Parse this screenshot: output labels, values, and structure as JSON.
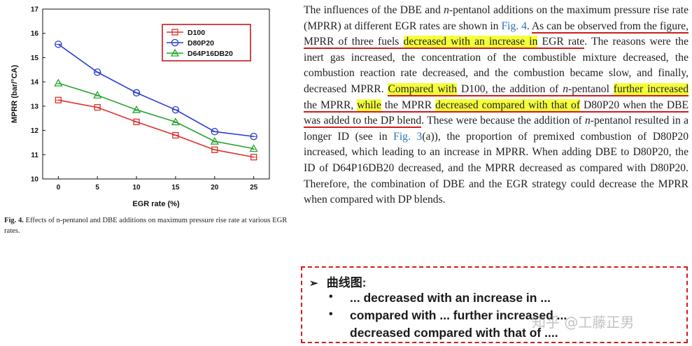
{
  "chart_data": {
    "type": "line",
    "x": [
      0,
      5,
      10,
      15,
      20,
      25
    ],
    "xlabel": "EGR rate (%)",
    "ylabel": "MPRR (bar/°CA)",
    "ylim": [
      10,
      17
    ],
    "xticks": [
      "0",
      "5",
      "10",
      "15",
      "20",
      "25"
    ],
    "yticks": [
      "10",
      "11",
      "12",
      "13",
      "14",
      "15",
      "16",
      "17"
    ],
    "legend_position": "top-right",
    "series": [
      {
        "name": "D100",
        "marker": "square",
        "color": "#e0302b",
        "values": [
          13.25,
          12.95,
          12.35,
          11.8,
          11.2,
          10.9
        ]
      },
      {
        "name": "D80P20",
        "marker": "circle",
        "color": "#2c3fcf",
        "values": [
          15.55,
          14.4,
          13.55,
          12.85,
          11.95,
          11.75
        ]
      },
      {
        "name": "D64P16DB20",
        "marker": "triangle",
        "color": "#27a532",
        "values": [
          13.95,
          13.45,
          12.85,
          12.35,
          11.55,
          11.25
        ]
      }
    ]
  },
  "caption": {
    "label": "Fig. 4.",
    "text": "Effects of n-pentanol and DBE additions on maximum pressure rise rate at various EGR rates."
  },
  "paragraph": {
    "p1": "The influences of the DBE and ",
    "p2": "n",
    "p3": "-pentanol additions on the maximum pressure rise rate (MPRR) at different EGR rates are shown in ",
    "ref1": "Fig. 4",
    "p4": ". ",
    "u1": "As can be observed from the figure, MPRR of three fuels ",
    "h1": "decreased with an increase in",
    "u2": " EGR rate",
    "p5": ". The reasons were the inert gas increased, the concentration of the combustible mixture decreased, the combustion reaction rate decreased, and the combustion became slow, and finally, decreased MPRR. ",
    "h2": "Compared with",
    "u3": " D100, the addition of ",
    "u4": "n",
    "u5": "-pentanol ",
    "h3": "further increased",
    "u6": " the MPRR, ",
    "h4": "while",
    "u7": " the MPRR ",
    "h5": "decreased compared with that of",
    "u8": " D80P20 when the DBE was added to the DP blend",
    "p6": ". These were because the addition of ",
    "p7": "n",
    "p8": "-pentanol resulted in a longer ID (see in ",
    "ref2": "Fig. 3",
    "p9": "(a)), the proportion of premixed combustion of D80P20 increased, which leading to an increase in MPRR. When adding DBE to D80P20, the ID of D64P16DB20 decreased, and the MPRR decreased as compared with D80P20. Therefore, the combination of DBE and the EGR strategy could decrease the MPRR when compared with DP blends."
  },
  "notes": {
    "arrow": "➢",
    "title": "曲线图:",
    "bullet": "•",
    "items": [
      "... decreased with an increase in ...",
      "compared with ... further increased ...",
      "decreased compared with that of ...."
    ]
  },
  "watermark": "知乎 @工藤正男"
}
